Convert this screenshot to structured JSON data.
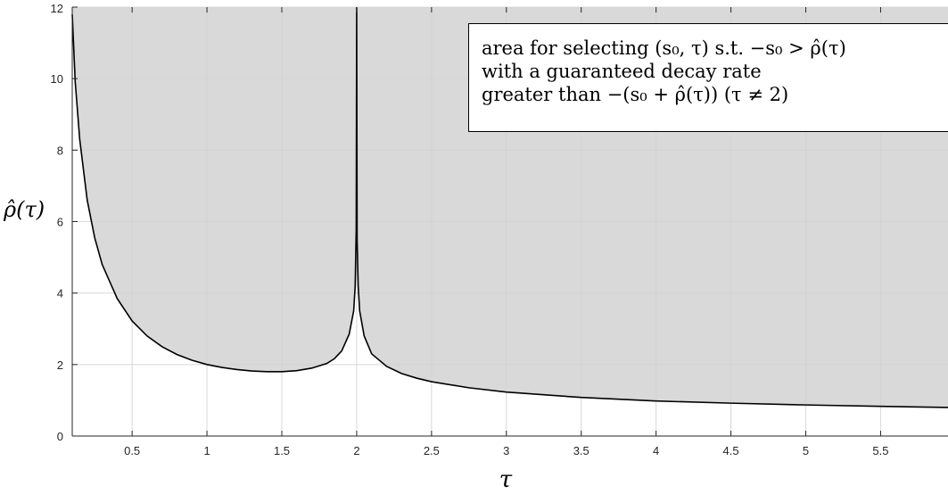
{
  "chart_data": {
    "type": "area",
    "xlabel": "τ",
    "ylabel": "ρ̂(τ)",
    "xlim": [
      0.1,
      5.95
    ],
    "ylim": [
      0,
      12
    ],
    "x_ticks": [
      0.5,
      1,
      1.5,
      2,
      2.5,
      3,
      3.5,
      4,
      4.5,
      5,
      5.5
    ],
    "x_tick_labels": [
      "0.5",
      "1",
      "1.5",
      "2",
      "2.5",
      "3",
      "3.5",
      "4",
      "4.5",
      "5",
      "5.5"
    ],
    "y_ticks": [
      0,
      2,
      4,
      6,
      8,
      10,
      12
    ],
    "y_tick_labels": [
      "0",
      "2",
      "4",
      "6",
      "8",
      "10",
      "12"
    ],
    "grid": true,
    "legend_placement": "top-right",
    "annotation_lines": [
      "area for selecting (s₀, τ) s.t. −s₀ > ρ̂(τ)",
      "with a guaranteed decay rate",
      "greater than −(s₀ + ρ̂(τ))   (τ ≠ 2)"
    ],
    "boundary_curve": {
      "x": [
        0.1,
        0.12,
        0.15,
        0.2,
        0.25,
        0.3,
        0.4,
        0.5,
        0.6,
        0.7,
        0.8,
        0.9,
        1.0,
        1.1,
        1.2,
        1.3,
        1.4,
        1.5,
        1.6,
        1.7,
        1.8,
        1.85,
        1.9,
        1.95,
        1.98,
        1.99,
        1.997,
        2.0,
        2.003,
        2.01,
        2.02,
        2.05,
        2.1,
        2.2,
        2.3,
        2.4,
        2.5,
        2.75,
        3.0,
        3.5,
        4.0,
        4.5,
        5.0,
        5.5,
        5.95
      ],
      "y": [
        11.8,
        9.9,
        8.3,
        6.6,
        5.55,
        4.8,
        3.85,
        3.22,
        2.8,
        2.5,
        2.28,
        2.12,
        2.0,
        1.92,
        1.86,
        1.82,
        1.8,
        1.8,
        1.83,
        1.9,
        2.03,
        2.16,
        2.38,
        2.85,
        3.5,
        4.2,
        5.8,
        12,
        5.5,
        4.2,
        3.5,
        2.8,
        2.3,
        1.95,
        1.75,
        1.62,
        1.52,
        1.35,
        1.23,
        1.08,
        0.98,
        0.92,
        0.87,
        0.83,
        0.8
      ]
    },
    "colors": {
      "fill": "#d9d9d9",
      "curve": "#000000",
      "grid": "#e3e3e3",
      "axis": "#262626"
    }
  }
}
